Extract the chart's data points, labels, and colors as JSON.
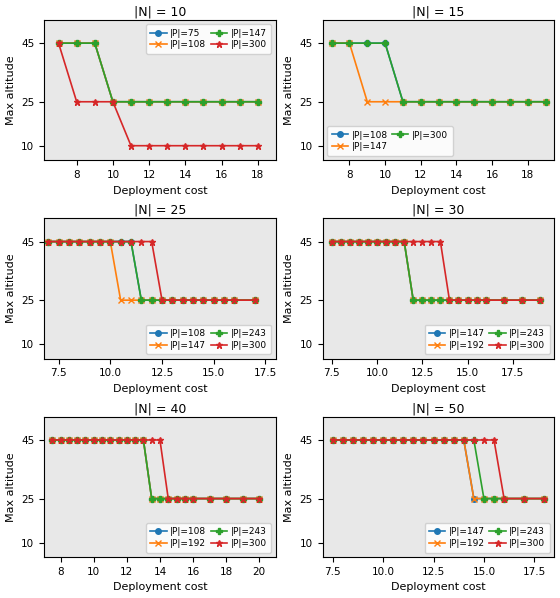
{
  "subplots": [
    {
      "title": "|N| = 10",
      "series": [
        {
          "label": "|P|=75",
          "color": "#1f77b4",
          "marker": "o",
          "x": [
            7,
            8,
            9,
            10,
            11,
            12,
            13,
            14,
            15,
            16,
            17,
            18
          ],
          "y": [
            45,
            45,
            45,
            25,
            25,
            25,
            25,
            25,
            25,
            25,
            25,
            25
          ]
        },
        {
          "label": "|P|=108",
          "color": "#ff7f0e",
          "marker": "x",
          "x": [
            7,
            8,
            9,
            10,
            11,
            12,
            13,
            14,
            15,
            16,
            17,
            18
          ],
          "y": [
            45,
            45,
            45,
            25,
            25,
            25,
            25,
            25,
            25,
            25,
            25,
            25
          ]
        },
        {
          "label": "|P|=147",
          "color": "#2ca02c",
          "marker": "P",
          "x": [
            7,
            8,
            9,
            10,
            11,
            12,
            13,
            14,
            15,
            16,
            17,
            18
          ],
          "y": [
            45,
            45,
            45,
            25,
            25,
            25,
            25,
            25,
            25,
            25,
            25,
            25
          ]
        },
        {
          "label": "|P|=300",
          "color": "#d62728",
          "marker": "*",
          "x": [
            7,
            8,
            9,
            10,
            11,
            12,
            13,
            14,
            15,
            16,
            17,
            18
          ],
          "y": [
            45,
            25,
            25,
            25,
            10,
            10,
            10,
            10,
            10,
            10,
            10,
            10
          ]
        }
      ],
      "xlim": [
        6.2,
        19.0
      ],
      "xticks": [
        8,
        10,
        12,
        14,
        16,
        18
      ],
      "ylim": [
        5,
        53
      ],
      "yticks": [
        10,
        25,
        45
      ],
      "legend_loc": "upper right",
      "legend_ncol": 2,
      "legend_inside": true
    },
    {
      "title": "|N| = 15",
      "series": [
        {
          "label": "|P|=108",
          "color": "#1f77b4",
          "marker": "o",
          "x": [
            7,
            8,
            9,
            10,
            11,
            12,
            13,
            14,
            15,
            16,
            17,
            18,
            19
          ],
          "y": [
            45,
            45,
            45,
            45,
            25,
            25,
            25,
            25,
            25,
            25,
            25,
            25,
            25
          ]
        },
        {
          "label": "|P|=147",
          "color": "#ff7f0e",
          "marker": "x",
          "x": [
            7,
            8,
            9,
            10,
            11,
            12,
            13,
            14,
            15,
            16,
            17,
            18,
            19
          ],
          "y": [
            45,
            45,
            25,
            25,
            25,
            25,
            25,
            25,
            25,
            25,
            25,
            25,
            25
          ]
        },
        {
          "label": "|P|=300",
          "color": "#2ca02c",
          "marker": "P",
          "x": [
            7,
            8,
            9,
            10,
            11,
            12,
            13,
            14,
            15,
            16,
            17,
            18,
            19
          ],
          "y": [
            45,
            45,
            45,
            45,
            25,
            25,
            25,
            25,
            25,
            25,
            25,
            25,
            25
          ]
        }
      ],
      "xlim": [
        6.5,
        19.5
      ],
      "xticks": [
        8,
        10,
        12,
        14,
        16,
        18
      ],
      "ylim": [
        5,
        53
      ],
      "yticks": [
        10,
        25,
        45
      ],
      "legend_loc": "lower left",
      "legend_ncol": 2,
      "legend_inside": true
    },
    {
      "title": "|N| = 25",
      "series": [
        {
          "label": "|P|=108",
          "color": "#1f77b4",
          "marker": "o",
          "x": [
            7,
            7.5,
            8,
            8.5,
            9,
            9.5,
            10,
            10.5,
            11,
            11.5,
            12,
            12.5,
            13,
            13.5,
            14,
            14.5,
            15,
            15.5,
            16,
            17
          ],
          "y": [
            45,
            45,
            45,
            45,
            45,
            45,
            45,
            45,
            45,
            25,
            25,
            25,
            25,
            25,
            25,
            25,
            25,
            25,
            25,
            25
          ]
        },
        {
          "label": "|P|=147",
          "color": "#ff7f0e",
          "marker": "x",
          "x": [
            7,
            7.5,
            8,
            8.5,
            9,
            9.5,
            10,
            10.5,
            11,
            11.5,
            12,
            12.5,
            13,
            13.5,
            14,
            14.5,
            15,
            15.5,
            16,
            17
          ],
          "y": [
            45,
            45,
            45,
            45,
            45,
            45,
            45,
            25,
            25,
            25,
            25,
            25,
            25,
            25,
            25,
            25,
            25,
            25,
            25,
            25
          ]
        },
        {
          "label": "|P|=243",
          "color": "#2ca02c",
          "marker": "P",
          "x": [
            7,
            7.5,
            8,
            8.5,
            9,
            9.5,
            10,
            10.5,
            11,
            11.5,
            12,
            12.5,
            13,
            13.5,
            14,
            14.5,
            15,
            15.5,
            16,
            17
          ],
          "y": [
            45,
            45,
            45,
            45,
            45,
            45,
            45,
            45,
            45,
            25,
            25,
            25,
            25,
            25,
            25,
            25,
            25,
            25,
            25,
            25
          ]
        },
        {
          "label": "|P|=300",
          "color": "#d62728",
          "marker": "*",
          "x": [
            7,
            7.5,
            8,
            8.5,
            9,
            9.5,
            10,
            10.5,
            11,
            11.5,
            12,
            12.5,
            13,
            13.5,
            14,
            14.5,
            15,
            15.5,
            16,
            17
          ],
          "y": [
            45,
            45,
            45,
            45,
            45,
            45,
            45,
            45,
            45,
            45,
            45,
            25,
            25,
            25,
            25,
            25,
            25,
            25,
            25,
            25
          ]
        }
      ],
      "xlim": [
        6.8,
        18.0
      ],
      "xticks": [
        7.5,
        10.0,
        12.5,
        15.0,
        17.5
      ],
      "ylim": [
        5,
        53
      ],
      "yticks": [
        10,
        25,
        45
      ],
      "legend_loc": "lower right",
      "legend_ncol": 2,
      "legend_inside": true
    },
    {
      "title": "|N| = 30",
      "series": [
        {
          "label": "|P|=147",
          "color": "#1f77b4",
          "marker": "o",
          "x": [
            7.5,
            8,
            8.5,
            9,
            9.5,
            10,
            10.5,
            11,
            11.5,
            12,
            12.5,
            13,
            13.5,
            14,
            14.5,
            15,
            15.5,
            16,
            17,
            18,
            19
          ],
          "y": [
            45,
            45,
            45,
            45,
            45,
            45,
            45,
            45,
            45,
            25,
            25,
            25,
            25,
            25,
            25,
            25,
            25,
            25,
            25,
            25,
            25
          ]
        },
        {
          "label": "|P|=192",
          "color": "#ff7f0e",
          "marker": "x",
          "x": [
            7.5,
            8,
            8.5,
            9,
            9.5,
            10,
            10.5,
            11,
            11.5,
            12,
            12.5,
            13,
            13.5,
            14,
            14.5,
            15,
            15.5,
            16,
            17,
            18,
            19
          ],
          "y": [
            45,
            45,
            45,
            45,
            45,
            45,
            45,
            45,
            45,
            25,
            25,
            25,
            25,
            25,
            25,
            25,
            25,
            25,
            25,
            25,
            25
          ]
        },
        {
          "label": "|P|=243",
          "color": "#2ca02c",
          "marker": "P",
          "x": [
            7.5,
            8,
            8.5,
            9,
            9.5,
            10,
            10.5,
            11,
            11.5,
            12,
            12.5,
            13,
            13.5,
            14,
            14.5,
            15,
            15.5,
            16,
            17,
            18,
            19
          ],
          "y": [
            45,
            45,
            45,
            45,
            45,
            45,
            45,
            45,
            45,
            25,
            25,
            25,
            25,
            25,
            25,
            25,
            25,
            25,
            25,
            25,
            25
          ]
        },
        {
          "label": "|P|=300",
          "color": "#d62728",
          "marker": "*",
          "x": [
            7.5,
            8,
            8.5,
            9,
            9.5,
            10,
            10.5,
            11,
            11.5,
            12,
            12.5,
            13,
            13.5,
            14,
            14.5,
            15,
            15.5,
            16,
            17,
            18,
            19
          ],
          "y": [
            45,
            45,
            45,
            45,
            45,
            45,
            45,
            45,
            45,
            45,
            45,
            45,
            45,
            25,
            25,
            25,
            25,
            25,
            25,
            25,
            25
          ]
        }
      ],
      "xlim": [
        7.0,
        19.8
      ],
      "xticks": [
        7.5,
        10.0,
        12.5,
        15.0,
        17.5
      ],
      "ylim": [
        5,
        53
      ],
      "yticks": [
        10,
        25,
        45
      ],
      "legend_loc": "lower right",
      "legend_ncol": 2,
      "legend_inside": true
    },
    {
      "title": "|N| = 40",
      "series": [
        {
          "label": "|P|=108",
          "color": "#1f77b4",
          "marker": "o",
          "x": [
            7.5,
            8,
            8.5,
            9,
            9.5,
            10,
            10.5,
            11,
            11.5,
            12,
            12.5,
            13,
            13.5,
            14,
            14.5,
            15,
            15.5,
            16,
            17,
            18,
            19,
            20
          ],
          "y": [
            45,
            45,
            45,
            45,
            45,
            45,
            45,
            45,
            45,
            45,
            45,
            45,
            25,
            25,
            25,
            25,
            25,
            25,
            25,
            25,
            25,
            25
          ]
        },
        {
          "label": "|P|=192",
          "color": "#ff7f0e",
          "marker": "x",
          "x": [
            7.5,
            8,
            8.5,
            9,
            9.5,
            10,
            10.5,
            11,
            11.5,
            12,
            12.5,
            13,
            13.5,
            14,
            14.5,
            15,
            15.5,
            16,
            17,
            18,
            19,
            20
          ],
          "y": [
            45,
            45,
            45,
            45,
            45,
            45,
            45,
            45,
            45,
            45,
            45,
            45,
            25,
            25,
            25,
            25,
            25,
            25,
            25,
            25,
            25,
            25
          ]
        },
        {
          "label": "|P|=243",
          "color": "#2ca02c",
          "marker": "P",
          "x": [
            7.5,
            8,
            8.5,
            9,
            9.5,
            10,
            10.5,
            11,
            11.5,
            12,
            12.5,
            13,
            13.5,
            14,
            14.5,
            15,
            15.5,
            16,
            17,
            18,
            19,
            20
          ],
          "y": [
            45,
            45,
            45,
            45,
            45,
            45,
            45,
            45,
            45,
            45,
            45,
            45,
            25,
            25,
            25,
            25,
            25,
            25,
            25,
            25,
            25,
            25
          ]
        },
        {
          "label": "|P|=300",
          "color": "#d62728",
          "marker": "*",
          "x": [
            7.5,
            8,
            8.5,
            9,
            9.5,
            10,
            10.5,
            11,
            11.5,
            12,
            12.5,
            13,
            13.5,
            14,
            14.5,
            15,
            15.5,
            16,
            17,
            18,
            19,
            20
          ],
          "y": [
            45,
            45,
            45,
            45,
            45,
            45,
            45,
            45,
            45,
            45,
            45,
            45,
            45,
            45,
            25,
            25,
            25,
            25,
            25,
            25,
            25,
            25
          ]
        }
      ],
      "xlim": [
        7.0,
        21.0
      ],
      "xticks": [
        8,
        10,
        12,
        14,
        16,
        18,
        20
      ],
      "ylim": [
        5,
        53
      ],
      "yticks": [
        10,
        25,
        45
      ],
      "legend_loc": "lower right",
      "legend_ncol": 2,
      "legend_inside": true
    },
    {
      "title": "|N| = 50",
      "series": [
        {
          "label": "|P|=147",
          "color": "#1f77b4",
          "marker": "o",
          "x": [
            7.5,
            8,
            8.5,
            9,
            9.5,
            10,
            10.5,
            11,
            11.5,
            12,
            12.5,
            13,
            13.5,
            14,
            14.5,
            15,
            15.5,
            16,
            17,
            18
          ],
          "y": [
            45,
            45,
            45,
            45,
            45,
            45,
            45,
            45,
            45,
            45,
            45,
            45,
            45,
            45,
            25,
            25,
            25,
            25,
            25,
            25
          ]
        },
        {
          "label": "|P|=192",
          "color": "#ff7f0e",
          "marker": "x",
          "x": [
            7.5,
            8,
            8.5,
            9,
            9.5,
            10,
            10.5,
            11,
            11.5,
            12,
            12.5,
            13,
            13.5,
            14,
            14.5,
            15,
            15.5,
            16,
            17,
            18
          ],
          "y": [
            45,
            45,
            45,
            45,
            45,
            45,
            45,
            45,
            45,
            45,
            45,
            45,
            45,
            45,
            25,
            25,
            25,
            25,
            25,
            25
          ]
        },
        {
          "label": "|P|=243",
          "color": "#2ca02c",
          "marker": "P",
          "x": [
            7.5,
            8,
            8.5,
            9,
            9.5,
            10,
            10.5,
            11,
            11.5,
            12,
            12.5,
            13,
            13.5,
            14,
            14.5,
            15,
            15.5,
            16,
            17,
            18
          ],
          "y": [
            45,
            45,
            45,
            45,
            45,
            45,
            45,
            45,
            45,
            45,
            45,
            45,
            45,
            45,
            45,
            25,
            25,
            25,
            25,
            25
          ]
        },
        {
          "label": "|P|=300",
          "color": "#d62728",
          "marker": "*",
          "x": [
            7.5,
            8,
            8.5,
            9,
            9.5,
            10,
            10.5,
            11,
            11.5,
            12,
            12.5,
            13,
            13.5,
            14,
            14.5,
            15,
            15.5,
            16,
            17,
            18
          ],
          "y": [
            45,
            45,
            45,
            45,
            45,
            45,
            45,
            45,
            45,
            45,
            45,
            45,
            45,
            45,
            45,
            45,
            45,
            25,
            25,
            25
          ]
        }
      ],
      "xlim": [
        7.0,
        18.5
      ],
      "xticks": [
        7.5,
        10.0,
        12.5,
        15.0,
        17.5
      ],
      "ylim": [
        5,
        53
      ],
      "yticks": [
        10,
        25,
        45
      ],
      "legend_loc": "lower right",
      "legend_ncol": 2,
      "legend_inside": true
    }
  ],
  "xlabel": "Deployment cost",
  "ylabel": "Max altitude",
  "bg_color": "#e8e8e8"
}
